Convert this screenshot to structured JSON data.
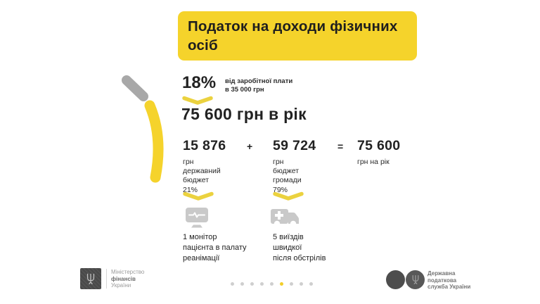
{
  "title": "Податок на доходи фізичних осіб",
  "rate": {
    "percent": "18%",
    "note_line1": "від заробітної плати",
    "note_line2": "в 35 000 грн",
    "annual": "75 600 грн в рік"
  },
  "breakdown": {
    "plus_sign": "+",
    "equals_sign": "=",
    "items": [
      {
        "amount": "15 876",
        "lines": [
          "грн",
          "державний",
          "бюджет",
          "21%"
        ],
        "icon": "patient-monitor-icon",
        "caption": [
          "1 монітор",
          "пацієнта в палату",
          "реанімації"
        ]
      },
      {
        "amount": "59 724",
        "lines": [
          "грн",
          "бюджет",
          "громади",
          "79%"
        ],
        "icon": "ambulance-icon",
        "caption": [
          "5 виїздів",
          "швидкої",
          "після обстрілів"
        ]
      }
    ],
    "total": {
      "amount": "75 600",
      "sub": "грн на рік"
    }
  },
  "footer": {
    "ministry": {
      "line1": "Міністерство",
      "line2": "фінансів",
      "line3": "України"
    },
    "tax_service": {
      "line1": "Державна",
      "line2": "податкова",
      "line3": "служба України"
    },
    "pagination": {
      "total": 9,
      "active_index": 6
    }
  },
  "colors": {
    "accent_yellow": "#F5D32B",
    "chevron_yellow": "#EBD23F",
    "icon_gray": "#C9C9C9",
    "segment_gray": "#A8A8A8",
    "text_dark": "#222222",
    "footer_gray": "#8A8A8A",
    "logo_dark": "#4A4A4A"
  }
}
